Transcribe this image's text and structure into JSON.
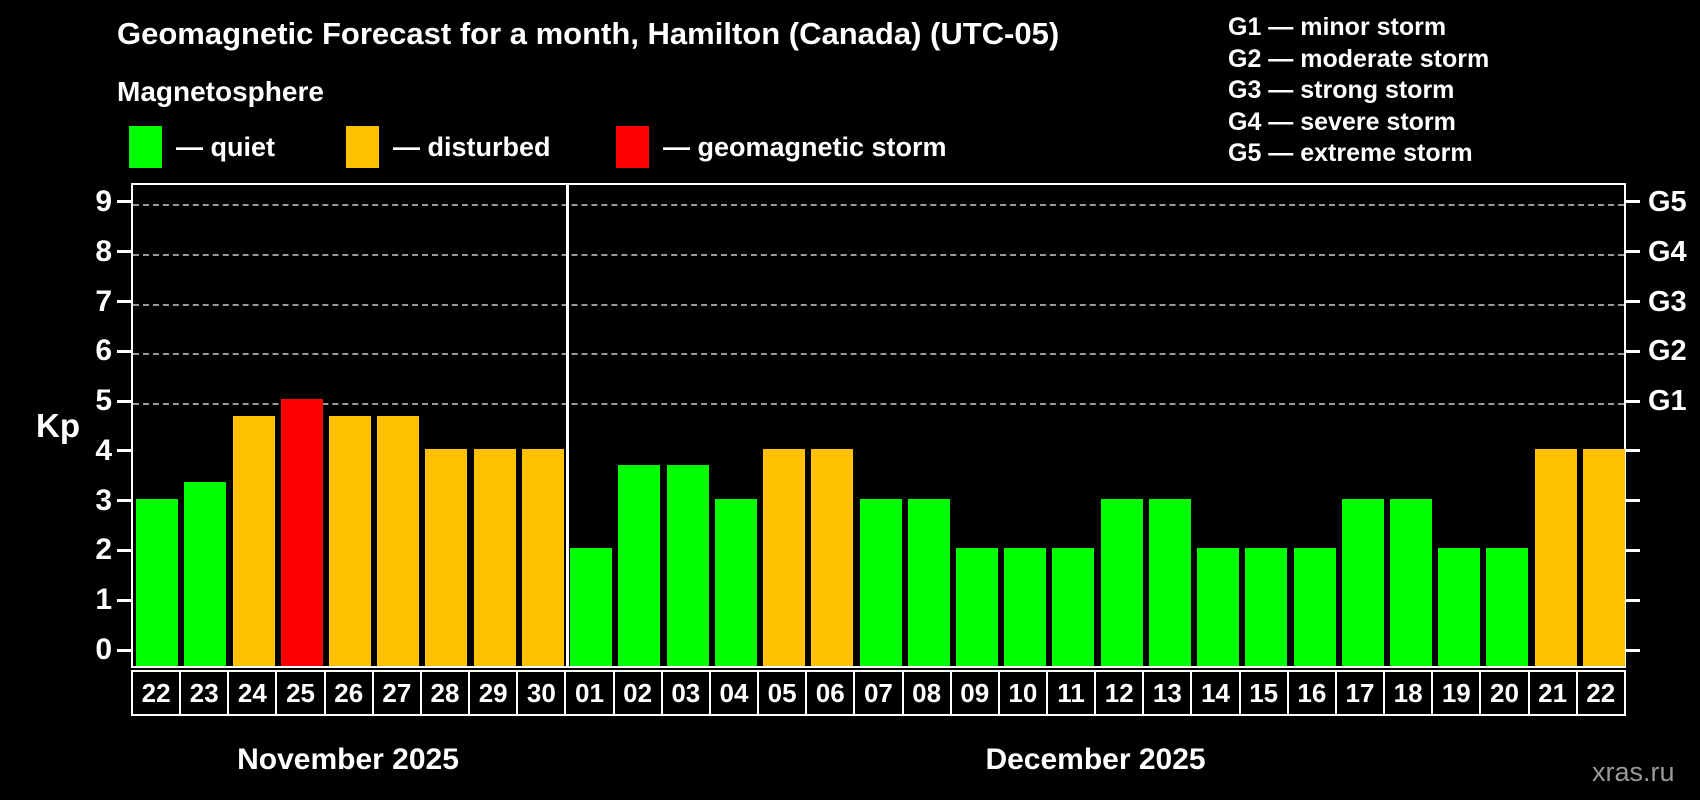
{
  "title": "Geomagnetic Forecast for a month, Hamilton (Canada) (UTC-05)",
  "subtitle": "Magnetosphere",
  "legend": [
    {
      "label": "— quiet",
      "status": "quiet"
    },
    {
      "label": "— disturbed",
      "status": "disturbed"
    },
    {
      "label": "— geomagnetic storm",
      "status": "storm"
    }
  ],
  "g_legend": [
    "G1 — minor storm",
    "G2 — moderate storm",
    "G3 — strong storm",
    "G4 — severe storm",
    "G5 — extreme storm"
  ],
  "watermark": "xras.ru",
  "chart_data": {
    "type": "bar",
    "title": "Geomagnetic Forecast for a month, Hamilton (Canada) (UTC-05)",
    "ylabel": "Kp",
    "ylim": [
      0,
      9
    ],
    "grid": "dashed horizontal lines at Kp 5-9 only",
    "legend_position": "top-left",
    "y_axis": {
      "label": "Kp",
      "ticks": [
        "0",
        "1",
        "2",
        "3",
        "4",
        "5",
        "6",
        "7",
        "8",
        "9"
      ]
    },
    "right_axis": {
      "labels": [
        "G1",
        "G2",
        "G3",
        "G4",
        "G5"
      ],
      "at_kp": [
        5,
        6,
        7,
        8,
        9
      ]
    },
    "status_colors": {
      "quiet": "#00ff00",
      "disturbed": "#ffc000",
      "storm": "#ff0000"
    },
    "months": [
      {
        "label": "November 2025",
        "bars": [
          {
            "day": "22",
            "kp": 3.0,
            "status": "quiet"
          },
          {
            "day": "23",
            "kp": 3.33,
            "status": "quiet"
          },
          {
            "day": "24",
            "kp": 4.67,
            "status": "disturbed"
          },
          {
            "day": "25",
            "kp": 5.0,
            "status": "storm"
          },
          {
            "day": "26",
            "kp": 4.67,
            "status": "disturbed"
          },
          {
            "day": "27",
            "kp": 4.67,
            "status": "disturbed"
          },
          {
            "day": "28",
            "kp": 4.0,
            "status": "disturbed"
          },
          {
            "day": "29",
            "kp": 4.0,
            "status": "disturbed"
          },
          {
            "day": "30",
            "kp": 4.0,
            "status": "disturbed"
          }
        ]
      },
      {
        "label": "December 2025",
        "bars": [
          {
            "day": "01",
            "kp": 2.0,
            "status": "quiet"
          },
          {
            "day": "02",
            "kp": 3.67,
            "status": "quiet"
          },
          {
            "day": "03",
            "kp": 3.67,
            "status": "quiet"
          },
          {
            "day": "04",
            "kp": 3.0,
            "status": "quiet"
          },
          {
            "day": "05",
            "kp": 4.0,
            "status": "disturbed"
          },
          {
            "day": "06",
            "kp": 4.0,
            "status": "disturbed"
          },
          {
            "day": "07",
            "kp": 3.0,
            "status": "quiet"
          },
          {
            "day": "08",
            "kp": 3.0,
            "status": "quiet"
          },
          {
            "day": "09",
            "kp": 2.0,
            "status": "quiet"
          },
          {
            "day": "10",
            "kp": 2.0,
            "status": "quiet"
          },
          {
            "day": "11",
            "kp": 2.0,
            "status": "quiet"
          },
          {
            "day": "12",
            "kp": 3.0,
            "status": "quiet"
          },
          {
            "day": "13",
            "kp": 3.0,
            "status": "quiet"
          },
          {
            "day": "14",
            "kp": 2.0,
            "status": "quiet"
          },
          {
            "day": "15",
            "kp": 2.0,
            "status": "quiet"
          },
          {
            "day": "16",
            "kp": 2.0,
            "status": "quiet"
          },
          {
            "day": "17",
            "kp": 3.0,
            "status": "quiet"
          },
          {
            "day": "18",
            "kp": 3.0,
            "status": "quiet"
          },
          {
            "day": "19",
            "kp": 2.0,
            "status": "quiet"
          },
          {
            "day": "20",
            "kp": 2.0,
            "status": "quiet"
          },
          {
            "day": "21",
            "kp": 4.0,
            "status": "disturbed"
          },
          {
            "day": "22",
            "kp": 4.0,
            "status": "disturbed"
          }
        ]
      }
    ]
  }
}
